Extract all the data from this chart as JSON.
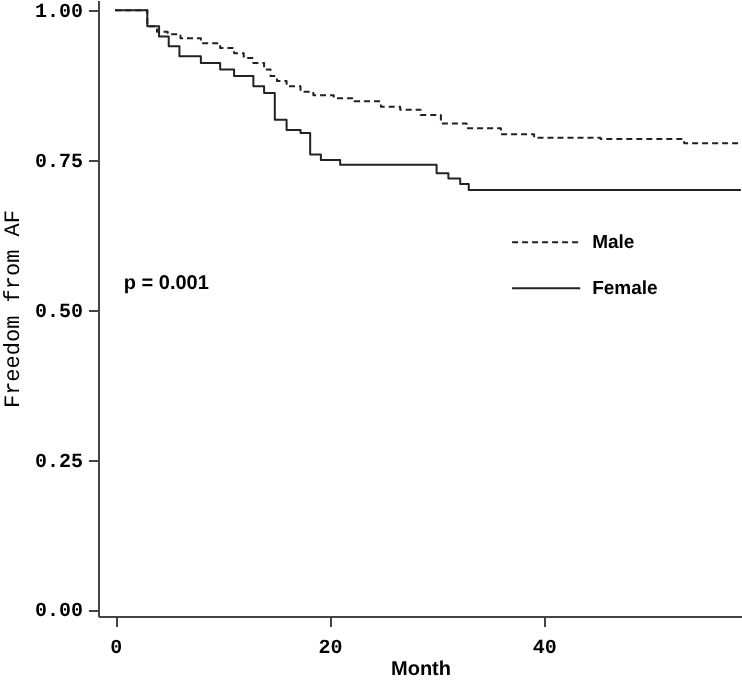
{
  "chart_data": {
    "type": "step",
    "xlabel": "Month",
    "ylabel": "Freedom from AF",
    "annotations": [
      "p = 0.001"
    ],
    "xlim": [
      -1.6,
      58.5
    ],
    "xticks": [
      0,
      20,
      40
    ],
    "ylim": [
      -0.011,
      1.017
    ],
    "yticks": [
      {
        "value": 0,
        "label": "0.00"
      },
      0.25,
      {
        "value": 0.5,
        "label": "0.50"
      },
      0.75,
      {
        "value": 1,
        "label": "1.00"
      }
    ],
    "grid": false,
    "legend": "right",
    "series": [
      {
        "name": "Male",
        "color": "#222222",
        "line_style": "dashed",
        "x": [
          0,
          3.0,
          3.9,
          4.9,
          6.1,
          8.0,
          9.8,
          11.1,
          12.0,
          12.9,
          13.9,
          14.5,
          15.1,
          16.0,
          17.3,
          18.5,
          20.4,
          22.3,
          24.8,
          26.6,
          28.5,
          30.4,
          32.8,
          36.0,
          39.1,
          45.3,
          53.1,
          58.4
        ],
        "values": [
          1.0,
          0.973,
          0.964,
          0.96,
          0.953,
          0.945,
          0.937,
          0.928,
          0.92,
          0.912,
          0.901,
          0.89,
          0.882,
          0.873,
          0.864,
          0.858,
          0.853,
          0.848,
          0.839,
          0.834,
          0.825,
          0.811,
          0.803,
          0.793,
          0.787,
          0.785,
          0.778,
          0.778
        ]
      },
      {
        "name": "Female",
        "color": "#222222",
        "line_style": "solid",
        "x": [
          0,
          3.0,
          4.1,
          5.0,
          6.0,
          8.0,
          9.8,
          11.1,
          12.9,
          13.9,
          14.9,
          16.0,
          17.3,
          18.2,
          19.2,
          21.0,
          30.0,
          31.1,
          32.2,
          33.0,
          58.4
        ],
        "values": [
          1.0,
          0.973,
          0.956,
          0.94,
          0.923,
          0.912,
          0.901,
          0.89,
          0.873,
          0.862,
          0.817,
          0.8,
          0.795,
          0.759,
          0.75,
          0.742,
          0.728,
          0.719,
          0.71,
          0.7,
          0.7
        ]
      }
    ]
  }
}
